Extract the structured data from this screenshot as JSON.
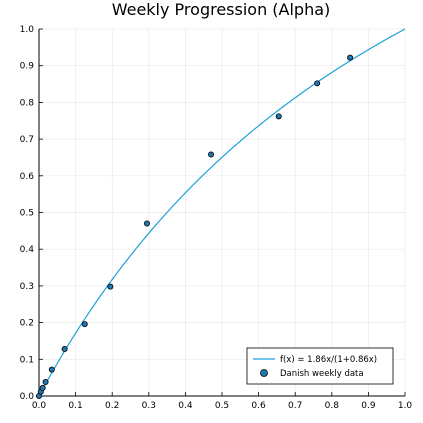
{
  "chart_data": {
    "type": "scatter",
    "title": "Weekly Progression (Alpha)",
    "xlabel": "",
    "ylabel": "",
    "xlim": [
      0.0,
      1.0
    ],
    "ylim": [
      0.0,
      1.0
    ],
    "xticks": [
      "0.0",
      "0.1",
      "0.2",
      "0.3",
      "0.4",
      "0.5",
      "0.6",
      "0.7",
      "0.8",
      "0.9",
      "1.0"
    ],
    "yticks": [
      "0.0",
      "0.1",
      "0.2",
      "0.3",
      "0.4",
      "0.5",
      "0.6",
      "0.7",
      "0.8",
      "0.9",
      "1.0"
    ],
    "grid": true,
    "legend_position": "bottom-right",
    "series": [
      {
        "name": "f(x) = 1.86x/(1+0.86x)",
        "kind": "line",
        "color": "#1fa0d9",
        "function": {
          "a": 1.86,
          "b": 0.86
        }
      },
      {
        "name": "Danish weekly data",
        "kind": "scatter",
        "color": "#1f77b4",
        "x": [
          0.0,
          0.005,
          0.01,
          0.018,
          0.035,
          0.07,
          0.125,
          0.195,
          0.295,
          0.47,
          0.655,
          0.76,
          0.85
        ],
        "y": [
          0.0,
          0.012,
          0.022,
          0.038,
          0.072,
          0.128,
          0.196,
          0.298,
          0.47,
          0.658,
          0.762,
          0.852,
          0.922
        ]
      }
    ]
  }
}
